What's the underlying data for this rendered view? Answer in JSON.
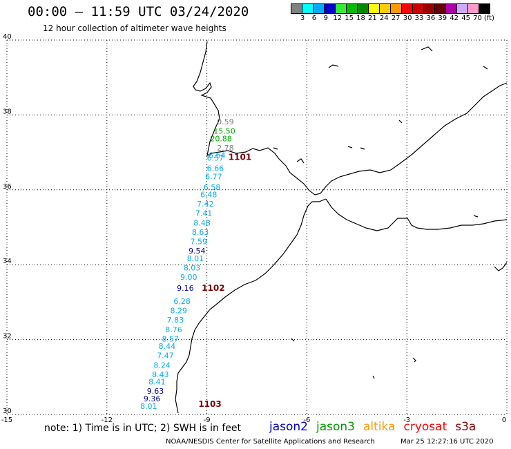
{
  "header": {
    "title": "00:00 – 11:59 UTC 03/24/2020",
    "subtitle": "12 hour collection of altimeter wave heights"
  },
  "colorbar": {
    "colors": [
      "#808080",
      "#00ffff",
      "#00aaff",
      "#0000cc",
      "#33ee33",
      "#00bb00",
      "#008800",
      "#ffff00",
      "#ffcc00",
      "#ff9900",
      "#ff0000",
      "#cc0000",
      "#990000",
      "#660000",
      "#aa00aa",
      "#ccaaff",
      "#ff99cc",
      "#000000"
    ],
    "labels": [
      "3",
      "6",
      "9",
      "12",
      "15",
      "18",
      "21",
      "24",
      "27",
      "30",
      "33",
      "36",
      "39",
      "42",
      "45",
      "70",
      "(ft)"
    ]
  },
  "axes": {
    "x_ticks": [
      "-15",
      "-12",
      "-9",
      "-6",
      "-3",
      "0"
    ],
    "y_ticks": [
      "40",
      "38",
      "36",
      "34",
      "32",
      "30"
    ],
    "lon_range": [
      -15,
      0
    ],
    "lat_range": [
      30,
      40
    ]
  },
  "buoys": [
    {
      "id": "1101",
      "lon": -9.1,
      "lat": 36.8
    },
    {
      "id": "1102",
      "lon": -9.9,
      "lat": 33.3
    },
    {
      "id": "1103",
      "lon": -10.0,
      "lat": 30.2
    }
  ],
  "observations": [
    {
      "value": "0.59",
      "lon": -8.7,
      "lat": 37.75,
      "color": "#808080"
    },
    {
      "value": "15.50",
      "lon": -8.8,
      "lat": 37.5,
      "color": "#00aa00"
    },
    {
      "value": "20.88",
      "lon": -8.9,
      "lat": 37.3,
      "color": "#00aa00"
    },
    {
      "value": "2.78",
      "lon": -8.7,
      "lat": 37.05,
      "color": "#808080"
    },
    {
      "value": "6.64",
      "lon": -8.95,
      "lat": 36.85,
      "color": "#00aaff"
    },
    {
      "value": "6.57",
      "lon": -9.0,
      "lat": 36.78,
      "color": "#00aaff"
    },
    {
      "value": "6.66",
      "lon": -9.0,
      "lat": 36.5,
      "color": "#00aaff"
    },
    {
      "value": "6.77",
      "lon": -9.05,
      "lat": 36.28,
      "color": "#00aaff"
    },
    {
      "value": "6.58",
      "lon": -9.1,
      "lat": 36.0,
      "color": "#00aaff"
    },
    {
      "value": "6.48",
      "lon": -9.2,
      "lat": 35.8,
      "color": "#00aaff"
    },
    {
      "value": "7.42",
      "lon": -9.3,
      "lat": 35.55,
      "color": "#00aaff"
    },
    {
      "value": "7.41",
      "lon": -9.35,
      "lat": 35.3,
      "color": "#00aaff"
    },
    {
      "value": "8.48",
      "lon": -9.4,
      "lat": 35.05,
      "color": "#00aaff"
    },
    {
      "value": "8.63",
      "lon": -9.45,
      "lat": 34.8,
      "color": "#00aaff"
    },
    {
      "value": "7.59",
      "lon": -9.5,
      "lat": 34.55,
      "color": "#00aaff"
    },
    {
      "value": "9.54",
      "lon": -9.55,
      "lat": 34.3,
      "color": "#0000aa"
    },
    {
      "value": "8.01",
      "lon": -9.6,
      "lat": 34.1,
      "color": "#00aaff"
    },
    {
      "value": "8.03",
      "lon": -9.7,
      "lat": 33.85,
      "color": "#00aaff"
    },
    {
      "value": "9.00",
      "lon": -9.8,
      "lat": 33.6,
      "color": "#00aaff"
    },
    {
      "value": "9.16",
      "lon": -9.9,
      "lat": 33.3,
      "color": "#0000aa"
    },
    {
      "value": "6.28",
      "lon": -10.0,
      "lat": 32.95,
      "color": "#00aaff"
    },
    {
      "value": "8.29",
      "lon": -10.1,
      "lat": 32.7,
      "color": "#00aaff"
    },
    {
      "value": "7.83",
      "lon": -10.2,
      "lat": 32.45,
      "color": "#00aaff"
    },
    {
      "value": "8.76",
      "lon": -10.25,
      "lat": 32.2,
      "color": "#00aaff"
    },
    {
      "value": "8.57",
      "lon": -10.35,
      "lat": 31.95,
      "color": "#00aaff"
    },
    {
      "value": "8.44",
      "lon": -10.45,
      "lat": 31.75,
      "color": "#00aaff"
    },
    {
      "value": "7.47",
      "lon": -10.5,
      "lat": 31.5,
      "color": "#00aaff"
    },
    {
      "value": "8.24",
      "lon": -10.6,
      "lat": 31.25,
      "color": "#00aaff"
    },
    {
      "value": "8.43",
      "lon": -10.65,
      "lat": 31.0,
      "color": "#00aaff"
    },
    {
      "value": "8.41",
      "lon": -10.75,
      "lat": 30.8,
      "color": "#00aaff"
    },
    {
      "value": "9.63",
      "lon": -10.8,
      "lat": 30.55,
      "color": "#0000aa"
    },
    {
      "value": "9.36",
      "lon": -10.9,
      "lat": 30.35,
      "color": "#0000aa"
    },
    {
      "value": "8.01",
      "lon": -11.0,
      "lat": 30.15,
      "color": "#00aaff"
    }
  ],
  "footer": {
    "note": "note: 1) Time is in UTC; 2) SWH is in feet",
    "missions": [
      {
        "name": "jason2",
        "color": "#0000cc"
      },
      {
        "name": "jason3",
        "color": "#009900"
      },
      {
        "name": "altika",
        "color": "#ff9900"
      },
      {
        "name": "cryosat",
        "color": "#ff0000"
      },
      {
        "name": "s3a",
        "color": "#990000"
      }
    ],
    "credit": "NOAA/NESDIS Center for Satellite Applications and Research",
    "timestamp": "Mar 25 12:27:16 UTC 2020"
  }
}
